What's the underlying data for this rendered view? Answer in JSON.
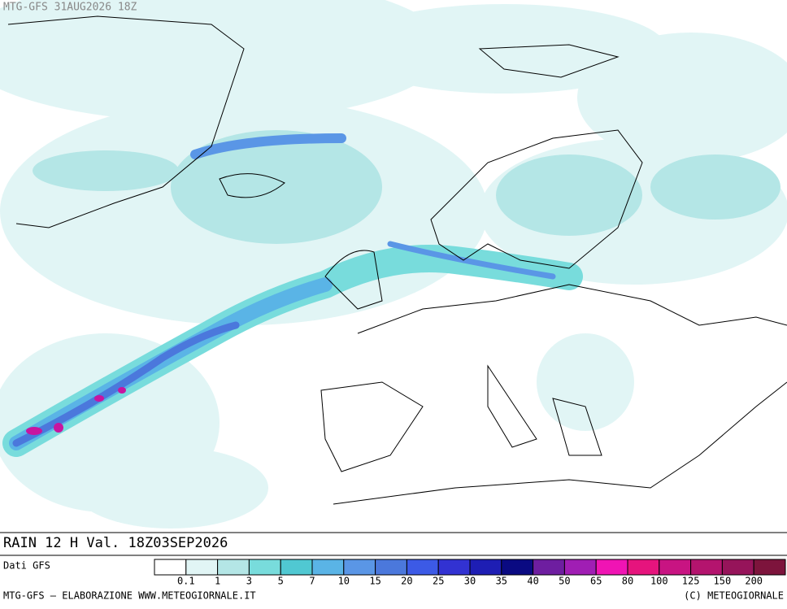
{
  "header": {
    "title": "MTG-GFS 31AUG2026 18Z"
  },
  "map": {
    "caption": "RAIN 12 H Val. 18Z03SEP2026"
  },
  "legend": {
    "source": "Dati GFS",
    "thresholds": [
      0.1,
      1,
      3,
      5,
      7,
      10,
      15,
      20,
      25,
      30,
      35,
      40,
      50,
      65,
      80,
      100,
      125,
      150,
      200
    ],
    "colors": [
      "#ffffff",
      "#e1f5f5",
      "#b4e6e6",
      "#78dcdc",
      "#50c8d2",
      "#5ab4e6",
      "#5a96e6",
      "#4b78dc",
      "#3c5ae6",
      "#3232d2",
      "#1e1eb4",
      "#0a0a82",
      "#6e1ea0",
      "#a01eb4",
      "#f014b4",
      "#e6147d",
      "#c81482",
      "#b4146e",
      "#96145a",
      "#7d143c"
    ]
  },
  "footer": {
    "left": "MTG-GFS — ELABORAZIONE WWW.METEOGIORNALE.IT",
    "right": "(C) METEOGIORNALE"
  }
}
